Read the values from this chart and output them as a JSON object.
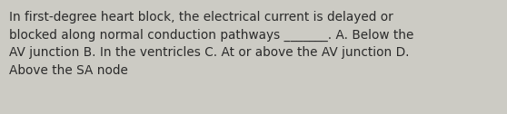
{
  "text": "In first-degree heart block, the electrical current is delayed or\nblocked along normal conduction pathways _______. A. Below the\nAV junction B. In the ventricles C. At or above the AV junction D.\nAbove the SA node",
  "background_color": "#cccbc4",
  "text_color": "#2a2a2a",
  "font_size": 9.8,
  "fig_width": 5.58,
  "fig_height": 1.26,
  "dpi": 100
}
